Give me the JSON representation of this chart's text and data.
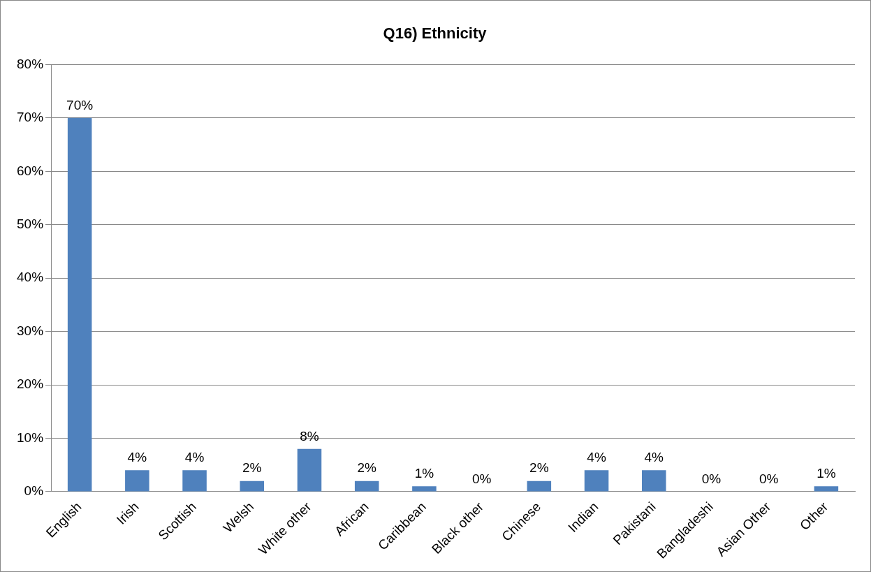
{
  "chart_data": {
    "type": "bar",
    "title": "Q16) Ethnicity",
    "categories": [
      "English",
      "Irish",
      "Scottish",
      "Welsh",
      "White other",
      "African",
      "Caribbean",
      "Black other",
      "Chinese",
      "Indian",
      "Pakistani",
      "Bangladeshi",
      "Asian Other",
      "Other"
    ],
    "values": [
      70,
      4,
      4,
      2,
      8,
      2,
      1,
      0,
      2,
      4,
      4,
      0,
      0,
      1
    ],
    "value_labels": [
      "70%",
      "4%",
      "4%",
      "2%",
      "8%",
      "2%",
      "1%",
      "0%",
      "2%",
      "4%",
      "4%",
      "0%",
      "0%",
      "1%"
    ],
    "color": "#4f81bd",
    "ylim": [
      0,
      80
    ],
    "yticks": [
      {
        "value": 0,
        "label": "0%"
      },
      {
        "value": 10,
        "label": "10%"
      },
      {
        "value": 20,
        "label": "20%"
      },
      {
        "value": 30,
        "label": "30%"
      },
      {
        "value": 40,
        "label": "40%"
      },
      {
        "value": 50,
        "label": "50%"
      },
      {
        "value": 60,
        "label": "60%"
      },
      {
        "value": 70,
        "label": "70%"
      },
      {
        "value": 80,
        "label": "80%"
      }
    ],
    "grid": "y",
    "legend": false
  }
}
